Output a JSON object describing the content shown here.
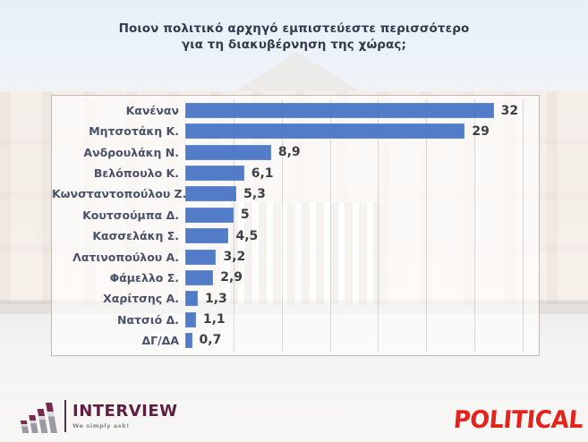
{
  "title": {
    "line1": "Ποιον πολιτικό αρχηγό εμπιστεύεστε περισσότερο",
    "line2": "για τη διακυβέρνηση της χώρας;"
  },
  "chart_data": {
    "type": "bar",
    "orientation": "horizontal",
    "title": "Ποιον πολιτικό αρχηγό εμπιστεύεστε περισσότερο για τη διακυβέρνηση της χώρας;",
    "categories": [
      "Κανέναν",
      "Μητσοτάκη Κ.",
      "Ανδρουλάκη Ν.",
      "Βελόπουλο Κ.",
      "Κωνσταντοπούλου Ζ.",
      "Κουτσούμπα Δ.",
      "Κασσελάκη Σ.",
      "Λατινοπούλου Α.",
      "Φάμελλο Σ.",
      "Χαρίτσης Α.",
      "Νατσιό Δ.",
      "ΔΓ/ΔΑ"
    ],
    "values": [
      32,
      29,
      8.9,
      6.1,
      5.3,
      5,
      4.5,
      3.2,
      2.9,
      1.3,
      1.1,
      0.7
    ],
    "value_labels": [
      "32",
      "29",
      "8,9",
      "6,1",
      "5,3",
      "5",
      "4,5",
      "3,2",
      "2,9",
      "1,3",
      "1,1",
      "0,7"
    ],
    "xlim": [
      0,
      36.3
    ],
    "grid_step": 5,
    "grid": true,
    "legend": false,
    "bar_color": "#4472c4",
    "value_decimal_separator": ","
  },
  "branding": {
    "interview_name": "INTERVIEW",
    "interview_tagline": "We simply ask!",
    "political": "POLITICAL"
  }
}
